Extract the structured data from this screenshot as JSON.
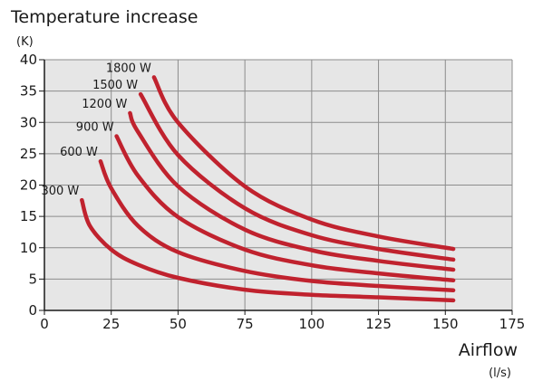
{
  "chart_data": {
    "type": "line",
    "title": "Temperature increase",
    "ylabel_unit": "(K)",
    "xlabel": "Airflow",
    "xlabel_unit": "(l/s)",
    "xlim": [
      0,
      175
    ],
    "ylim": [
      0,
      40
    ],
    "x_ticks": [
      "0",
      "25",
      "50",
      "75",
      "100",
      "125",
      "150",
      "175"
    ],
    "y_ticks": [
      "0",
      "5",
      "10",
      "15",
      "20",
      "25",
      "30",
      "35",
      "40"
    ],
    "grid": true,
    "line_color": "#c0222e",
    "series": [
      {
        "name": "300 W",
        "x": [
          14,
          17,
          25,
          35,
          50,
          75,
          100,
          125,
          153
        ],
        "y": [
          17.6,
          13.5,
          9.7,
          7.3,
          5.2,
          3.3,
          2.5,
          2.1,
          1.6
        ]
      },
      {
        "name": "600 W",
        "x": [
          21,
          25,
          35,
          50,
          75,
          100,
          125,
          153
        ],
        "y": [
          23.8,
          19.5,
          13.5,
          9.3,
          6.3,
          4.7,
          3.9,
          3.2
        ]
      },
      {
        "name": "900 W",
        "x": [
          27,
          35,
          50,
          75,
          100,
          125,
          153
        ],
        "y": [
          27.8,
          21.5,
          14.9,
          9.7,
          7.2,
          5.9,
          4.8
        ]
      },
      {
        "name": "1200 W",
        "x": [
          32,
          35,
          50,
          75,
          100,
          125,
          153
        ],
        "y": [
          31.5,
          28.5,
          19.8,
          12.9,
          9.6,
          7.9,
          6.5
        ]
      },
      {
        "name": "1500 W",
        "x": [
          36,
          50,
          75,
          100,
          125,
          153
        ],
        "y": [
          34.5,
          24.8,
          16.3,
          12.0,
          9.8,
          8.1
        ]
      },
      {
        "name": "1800 W",
        "x": [
          41,
          50,
          75,
          100,
          125,
          153
        ],
        "y": [
          37.2,
          30.0,
          19.8,
          14.5,
          11.8,
          9.8
        ]
      }
    ]
  }
}
